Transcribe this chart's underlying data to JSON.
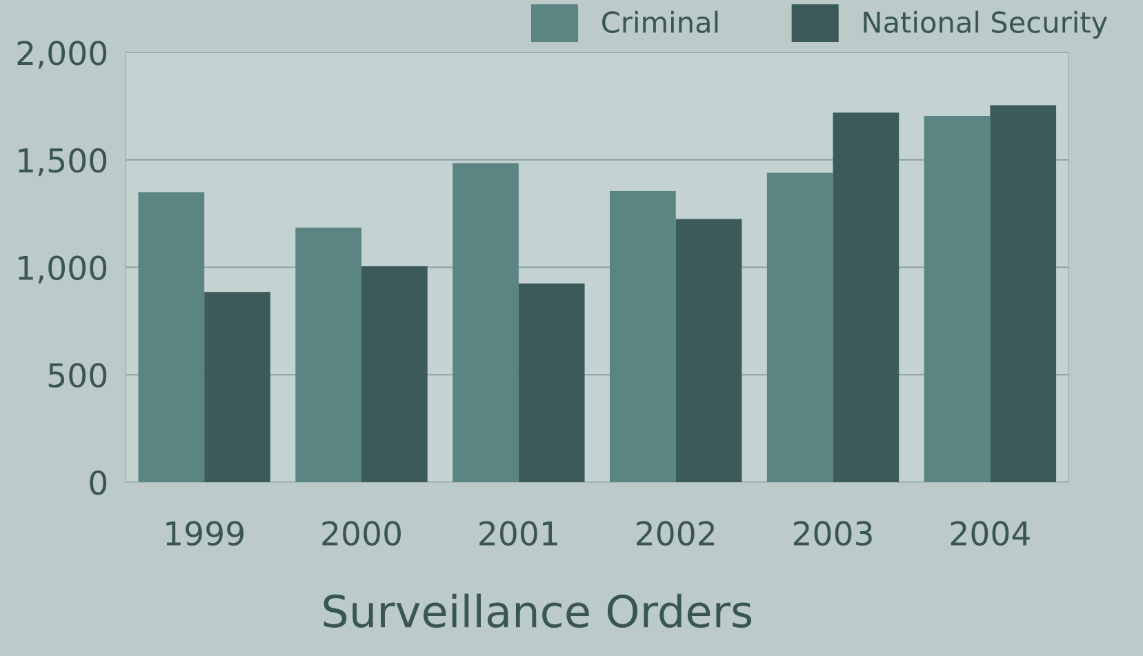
{
  "chart_data": {
    "type": "bar",
    "title": "Surveillance Orders",
    "categories": [
      "1999",
      "2000",
      "2001",
      "2002",
      "2003",
      "2004"
    ],
    "series": [
      {
        "name": "Criminal",
        "color": "#5a8582",
        "values": [
          1350,
          1185,
          1485,
          1355,
          1440,
          1705
        ]
      },
      {
        "name": "National Security",
        "color": "#3d5a5a",
        "values": [
          885,
          1005,
          925,
          1225,
          1720,
          1755
        ]
      }
    ],
    "ylim": [
      0,
      2000
    ],
    "yticks": [
      0,
      {
        "value": 500,
        "label": "500"
      },
      {
        "value": 1000,
        "label": "1,000"
      },
      {
        "value": 1500,
        "label": "1,500"
      },
      {
        "value": 2000,
        "label": "2,000"
      }
    ],
    "grid": "y",
    "legend": "top right"
  }
}
